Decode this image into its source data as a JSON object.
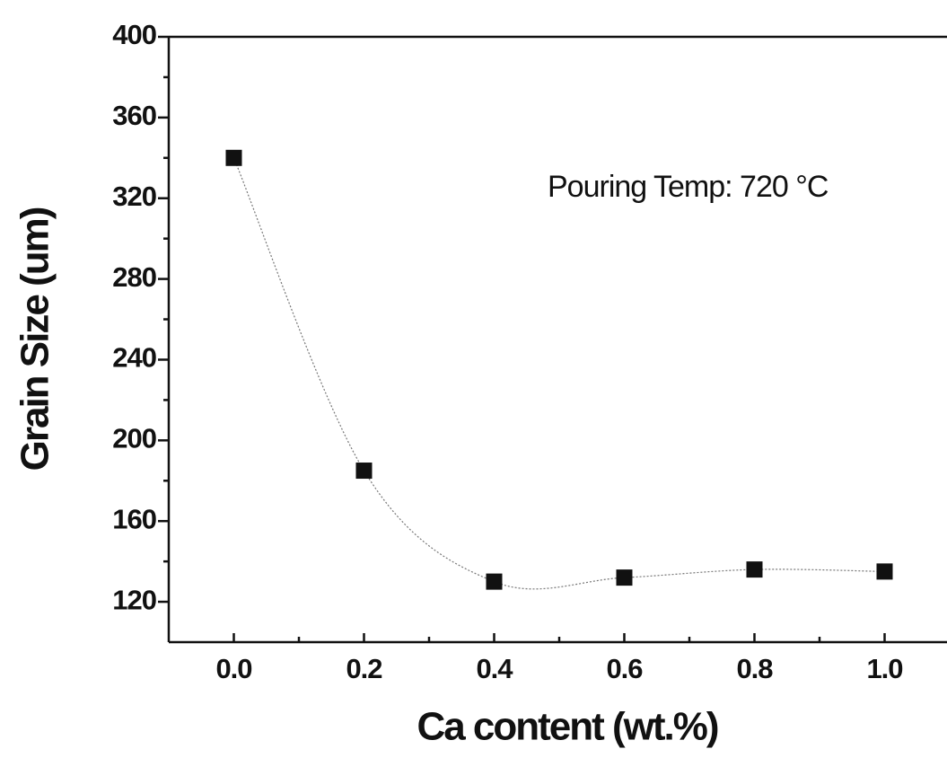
{
  "chart_data": {
    "type": "scatter",
    "x_label": "Ca content (wt.%)",
    "y_label": "Grain Size (um)",
    "annotation": "Pouring Temp: 720 °C",
    "x": [
      0.0,
      0.2,
      0.4,
      0.6,
      0.8,
      1.0
    ],
    "series": [
      {
        "color": "#111111",
        "values": [
          340,
          185,
          130,
          132,
          136,
          135
        ]
      }
    ],
    "fit_line": true,
    "xlim": [
      -0.1,
      1.1
    ],
    "ylim": [
      100,
      400
    ],
    "xticks": [
      {
        "value": 0,
        "label": "0.0"
      },
      {
        "value": 0.2,
        "label": "0.2"
      },
      {
        "value": 0.4,
        "label": "0.4"
      },
      {
        "value": 0.6,
        "label": "0.6"
      },
      {
        "value": 0.8,
        "label": "0.8"
      },
      {
        "value": 1,
        "label": "1.0"
      }
    ],
    "yticks": [
      120,
      160,
      200,
      240,
      280,
      320,
      360,
      400
    ]
  }
}
